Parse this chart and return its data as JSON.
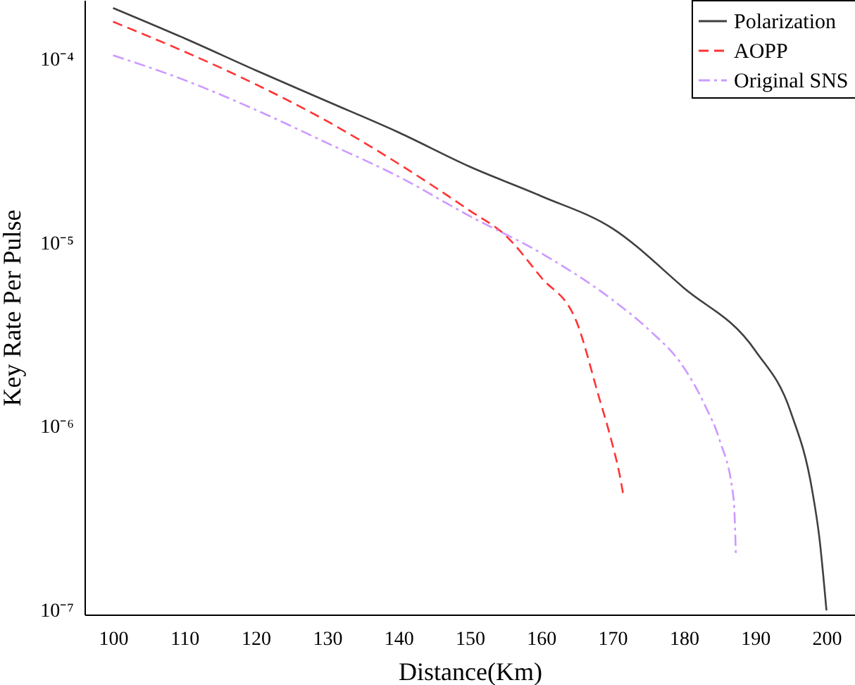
{
  "chart_data": {
    "type": "line",
    "xlabel": "Distance(Km)",
    "ylabel": "Key Rate Per Pulse",
    "log": "y",
    "xlim": [
      96,
      204
    ],
    "ylim": [
      9.5e-08,
      0.00021
    ],
    "xticks": [
      100,
      110,
      120,
      130,
      140,
      150,
      160,
      170,
      180,
      190,
      200
    ],
    "yticks": [
      {
        "value": 1e-07,
        "label": "10⁻⁷"
      },
      {
        "value": 1e-06,
        "label": "10⁻⁶"
      },
      {
        "value": 1e-05,
        "label": "10⁻⁵"
      },
      {
        "value": 0.0001,
        "label": "10⁻⁴"
      }
    ],
    "grid": false,
    "legend": "top right",
    "marker": "none",
    "series": [
      {
        "name": "Polarization",
        "color": "#404040",
        "line_style": "solid",
        "x": [
          100,
          110,
          120,
          130,
          140,
          150,
          160,
          170,
          180,
          190,
          195,
          198,
          199,
          200
        ],
        "values": [
          0.00019,
          0.00013,
          8.7e-05,
          5.9e-05,
          4e-05,
          2.6e-05,
          1.8e-05,
          1.2e-05,
          5.7e-06,
          2.6e-06,
          1.2e-06,
          4.5e-07,
          2.5e-07,
          1e-07
        ]
      },
      {
        "name": "AOPP",
        "color": "#ff3333",
        "line_style": "dashed",
        "x": [
          100,
          110,
          120,
          130,
          140,
          150,
          155,
          160,
          165,
          168,
          170,
          171,
          171.5
        ],
        "values": [
          0.00016,
          0.00011,
          7.3e-05,
          4.6e-05,
          2.7e-05,
          1.5e-05,
          1.1e-05,
          6.5e-06,
          3.7e-06,
          1.5e-06,
          8e-07,
          5.5e-07,
          4.3e-07
        ]
      },
      {
        "name": "Original SNS",
        "color": "#cc99ff",
        "line_style": "dashdot",
        "x": [
          100,
          110,
          120,
          130,
          140,
          150,
          160,
          170,
          175,
          180,
          183,
          185,
          187,
          187.3
        ],
        "values": [
          0.000105,
          7.7e-05,
          5.3e-05,
          3.5e-05,
          2.3e-05,
          1.4e-05,
          8.8e-06,
          4.9e-06,
          3.4e-06,
          2.1e-06,
          1.3e-06,
          8.5e-07,
          4e-07,
          2e-07
        ]
      }
    ]
  }
}
